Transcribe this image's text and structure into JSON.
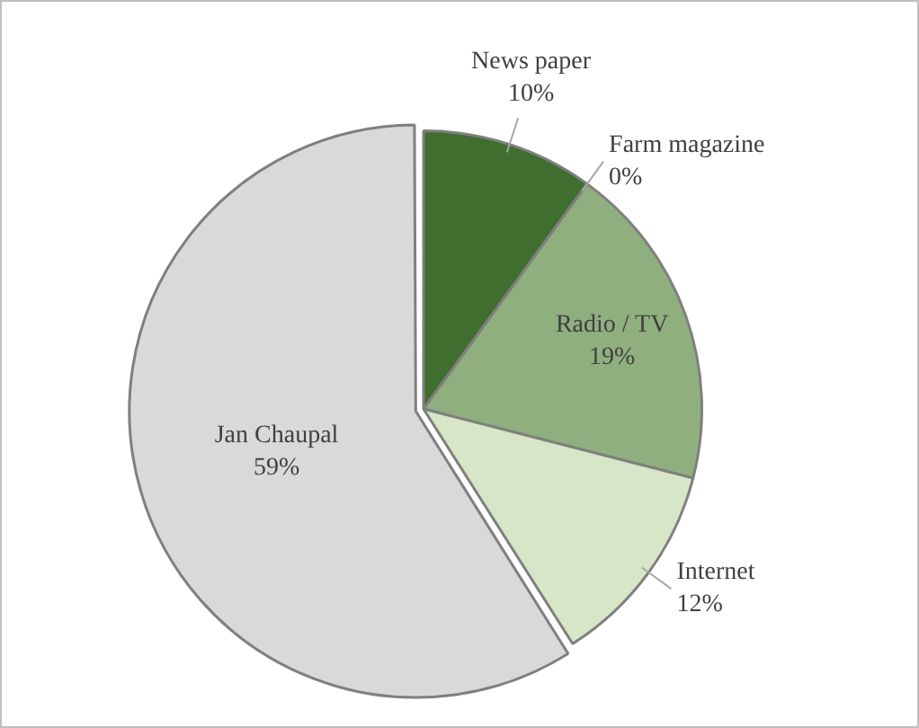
{
  "chart_data": {
    "type": "pie",
    "categories": [
      "News paper",
      "Farm magazine",
      "Radio / TV",
      "Internet",
      "Jan Chaupal"
    ],
    "values": [
      10,
      0,
      19,
      12,
      59
    ],
    "value_labels": [
      "10%",
      "0%",
      "19%",
      "12%",
      "59%"
    ],
    "colors": [
      "#3f6e2e",
      "#6f9a5c",
      "#8fb07e",
      "#d6e6c6",
      "#d9d9d9"
    ],
    "legend": false
  }
}
